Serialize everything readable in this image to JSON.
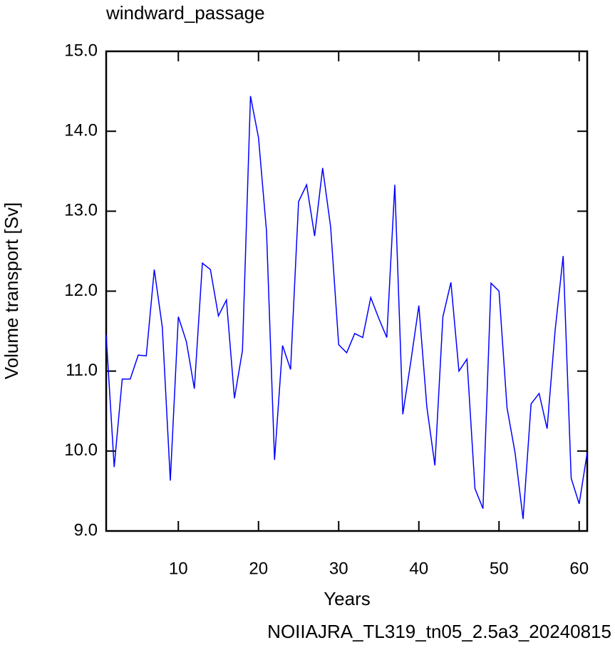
{
  "chart_data": {
    "type": "line",
    "title": "windward_passage",
    "x_label": "Years",
    "y_label": "Volume transport [Sv]",
    "footer": "NOIIAJRA_TL319_tn05_2.5a3_20240815",
    "footer_color": "#0000ff",
    "x": [
      1,
      2,
      3,
      4,
      5,
      6,
      7,
      8,
      9,
      10,
      11,
      12,
      13,
      14,
      15,
      16,
      17,
      18,
      19,
      20,
      21,
      22,
      23,
      24,
      25,
      26,
      27,
      28,
      29,
      30,
      31,
      32,
      33,
      34,
      35,
      36,
      37,
      38,
      39,
      40,
      41,
      42,
      43,
      44,
      45,
      46,
      47,
      48,
      49,
      50,
      51,
      52,
      53,
      54,
      55,
      56,
      57,
      58,
      59,
      60,
      61
    ],
    "series": [
      {
        "name": "windward_passage",
        "color": "#0000ff",
        "values": [
          11.45,
          9.8,
          10.9,
          10.9,
          11.2,
          11.19,
          12.27,
          11.55,
          9.63,
          11.68,
          11.37,
          10.78,
          12.35,
          12.27,
          11.69,
          11.89,
          10.66,
          11.26,
          14.44,
          13.92,
          12.75,
          9.89,
          11.32,
          11.02,
          13.12,
          13.33,
          12.69,
          13.54,
          12.8,
          11.33,
          11.23,
          11.47,
          11.42,
          11.92,
          11.66,
          11.42,
          13.33,
          10.46,
          11.12,
          11.82,
          10.55,
          9.82,
          11.68,
          12.11,
          11.0,
          11.15,
          9.53,
          9.28,
          12.1,
          12.0,
          10.54,
          9.98,
          9.15,
          10.59,
          10.72,
          10.28,
          11.51,
          12.44,
          9.66,
          9.34,
          9.98
        ]
      }
    ],
    "xlim": [
      1,
      61
    ],
    "ylim": [
      9,
      15
    ],
    "xticks": [
      10,
      20,
      30,
      40,
      50,
      60
    ],
    "yticks": [
      {
        "value": 9,
        "label": "9.0"
      },
      {
        "value": 10,
        "label": "10.0"
      },
      {
        "value": 11,
        "label": "11.0"
      },
      {
        "value": 12,
        "label": "12.0"
      },
      {
        "value": 13,
        "label": "13.0"
      },
      {
        "value": 14,
        "label": "14.0"
      },
      {
        "value": 15,
        "label": "15.0"
      }
    ]
  }
}
